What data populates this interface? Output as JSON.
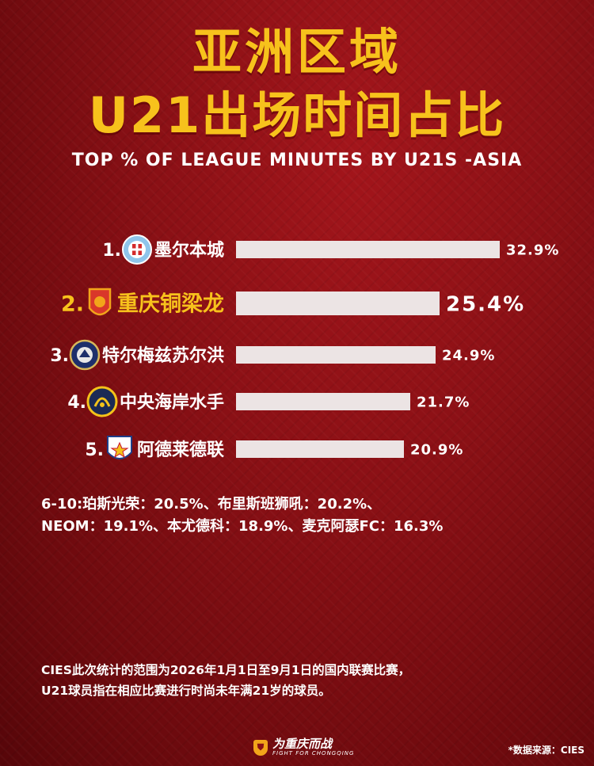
{
  "title_line1": "亚洲区域",
  "title_line2": "U21出场时间占比",
  "subtitle": "TOP % OF LEAGUE MINUTES BY U21S -ASIA",
  "chart_data": {
    "type": "bar",
    "orientation": "horizontal",
    "title": "TOP % OF LEAGUE MINUTES BY U21S -ASIA",
    "xlabel": "",
    "ylabel": "",
    "xlim": [
      0,
      32.9
    ],
    "grid": false,
    "categories": [
      "墨尔本城",
      "重庆铜梁龙",
      "特尔梅兹苏尔洪",
      "中央海岸水手",
      "阿德莱德联"
    ],
    "ranks": [
      "1.",
      "2.",
      "3.",
      "4.",
      "5."
    ],
    "values": [
      32.9,
      25.4,
      24.9,
      21.7,
      20.9
    ],
    "value_labels": [
      "32.9%",
      "25.4%",
      "24.9%",
      "21.7%",
      "20.9%"
    ],
    "highlight_index": 1,
    "crest_icons": [
      "melbourne-city-crest-icon",
      "chongqing-tonglianglong-crest-icon",
      "termez-surkhon-crest-icon",
      "central-coast-mariners-crest-icon",
      "adelaide-united-crest-icon"
    ]
  },
  "others_line1": "6-10:珀斯光荣：20.5%、布里斯班狮吼：20.2%、",
  "others_line2": "NEOM：19.1%、本尤德科：18.9%、麦克阿瑟FC：16.3%",
  "note_line1": "CIES此次统计的范围为2026年1月1日至9月1日的国内联赛比赛，",
  "note_line2": "U21球员指在相应比赛进行时尚未年满21岁的球员。",
  "footer_logo_main": "为重庆而战",
  "footer_logo_sub": "FIGHT FOR CHONGQING",
  "source": "*数据来源：CIES",
  "colors": {
    "background": "#8a1015",
    "title": "#f7c21c",
    "bar": "#ece4e4",
    "highlight_text": "#f7c21c",
    "text": "#ffffff"
  }
}
